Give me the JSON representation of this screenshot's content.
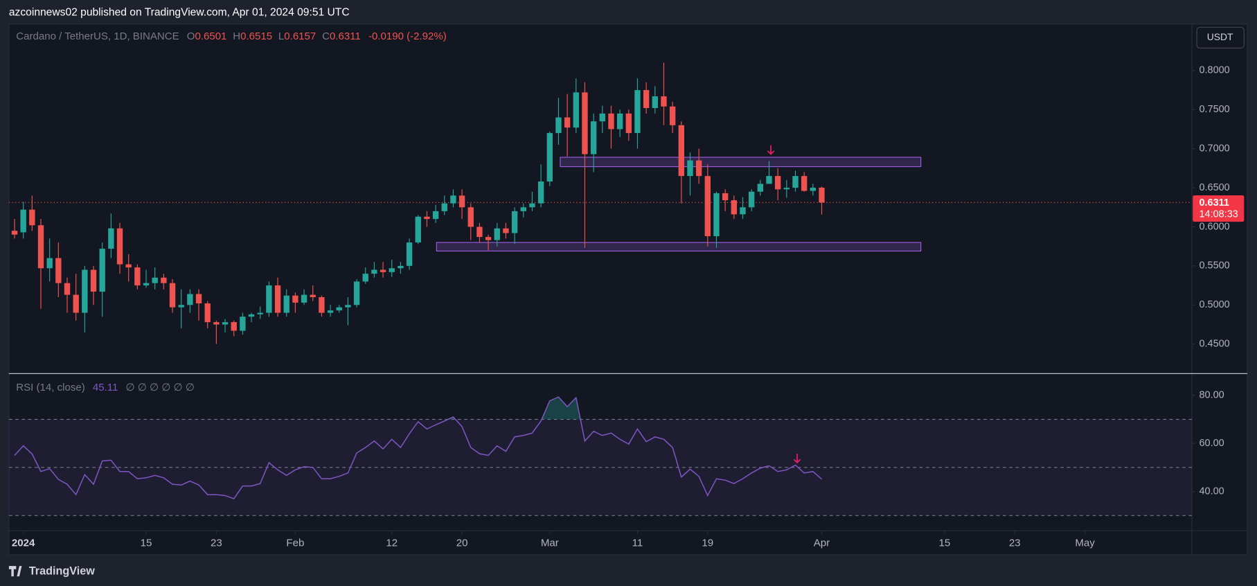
{
  "header": {
    "text": "azcoinnews02 published on TradingView.com, Apr 01, 2024 09:51 UTC"
  },
  "brand": "TradingView",
  "currency": "USDT",
  "chart_data": [
    {
      "type": "candlestick",
      "symbol": "Cardano / TetherUS, 1D, BINANCE",
      "ohlc_labels": [
        "O",
        "H",
        "L",
        "C"
      ],
      "change": "-0.0190 (-2.92%)",
      "countdown": "14:08:33",
      "up_color": "#26a69a",
      "down_color": "#ef5350",
      "x": [
        -1,
        0,
        1,
        2,
        3,
        4,
        5,
        6,
        7,
        8,
        9,
        10,
        11,
        12,
        13,
        14,
        15,
        16,
        17,
        18,
        19,
        20,
        21,
        22,
        23,
        24,
        25,
        26,
        27,
        28,
        29,
        30,
        31,
        32,
        33,
        34,
        35,
        36,
        37,
        38,
        39,
        40,
        41,
        42,
        43,
        44,
        45,
        46,
        47,
        48,
        49,
        50,
        51,
        52,
        53,
        54,
        55,
        56,
        57,
        58,
        59,
        60,
        61,
        62,
        63,
        64,
        65,
        66,
        67,
        68,
        69,
        70,
        71,
        72,
        73,
        74,
        75,
        76,
        77,
        78,
        79,
        80,
        81,
        82,
        83,
        84,
        85,
        86,
        87,
        88,
        89,
        90,
        91
      ],
      "open": [
        0.595,
        0.593,
        0.622,
        0.602,
        0.547,
        0.56,
        0.528,
        0.513,
        0.49,
        0.545,
        0.517,
        0.572,
        0.598,
        0.552,
        0.548,
        0.525,
        0.528,
        0.535,
        0.528,
        0.497,
        0.5,
        0.514,
        0.502,
        0.478,
        0.475,
        0.478,
        0.467,
        0.485,
        0.488,
        0.49,
        0.525,
        0.49,
        0.512,
        0.503,
        0.513,
        0.51,
        0.49,
        0.493,
        0.497,
        0.5,
        0.53,
        0.54,
        0.545,
        0.542,
        0.547,
        0.55,
        0.58,
        0.613,
        0.61,
        0.62,
        0.63,
        0.64,
        0.625,
        0.6,
        0.587,
        0.583,
        0.598,
        0.592,
        0.62,
        0.625,
        0.63,
        0.658,
        0.72,
        0.74,
        0.727,
        0.772,
        0.693,
        0.735,
        0.745,
        0.725,
        0.745,
        0.72,
        0.775,
        0.752,
        0.767,
        0.754,
        0.73,
        0.665,
        0.685,
        0.665,
        0.588,
        0.643,
        0.634,
        0.616,
        0.625,
        0.645,
        0.655,
        0.665,
        0.648,
        0.65,
        0.665,
        0.646,
        0.6501
      ],
      "high": [
        0.61,
        0.632,
        0.64,
        0.61,
        0.585,
        0.58,
        0.535,
        0.54,
        0.55,
        0.55,
        0.58,
        0.617,
        0.605,
        0.565,
        0.552,
        0.545,
        0.548,
        0.54,
        0.533,
        0.52,
        0.52,
        0.52,
        0.505,
        0.48,
        0.482,
        0.48,
        0.49,
        0.49,
        0.498,
        0.53,
        0.535,
        0.52,
        0.516,
        0.52,
        0.525,
        0.512,
        0.5,
        0.5,
        0.51,
        0.533,
        0.548,
        0.555,
        0.555,
        0.558,
        0.555,
        0.585,
        0.615,
        0.62,
        0.628,
        0.64,
        0.648,
        0.648,
        0.63,
        0.605,
        0.59,
        0.605,
        0.605,
        0.625,
        0.63,
        0.645,
        0.68,
        0.722,
        0.765,
        0.77,
        0.79,
        0.785,
        0.745,
        0.755,
        0.755,
        0.75,
        0.75,
        0.79,
        0.785,
        0.78,
        0.81,
        0.76,
        0.735,
        0.695,
        0.7,
        0.68,
        0.645,
        0.648,
        0.64,
        0.638,
        0.648,
        0.66,
        0.684,
        0.675,
        0.66,
        0.672,
        0.67,
        0.655,
        0.6515
      ],
      "low": [
        0.585,
        0.585,
        0.595,
        0.495,
        0.53,
        0.51,
        0.49,
        0.48,
        0.465,
        0.5,
        0.485,
        0.56,
        0.54,
        0.53,
        0.52,
        0.522,
        0.52,
        0.52,
        0.49,
        0.47,
        0.49,
        0.48,
        0.47,
        0.45,
        0.465,
        0.46,
        0.462,
        0.478,
        0.482,
        0.485,
        0.485,
        0.485,
        0.49,
        0.5,
        0.505,
        0.485,
        0.485,
        0.49,
        0.474,
        0.497,
        0.527,
        0.535,
        0.535,
        0.536,
        0.54,
        0.545,
        0.578,
        0.6,
        0.605,
        0.615,
        0.625,
        0.61,
        0.583,
        0.58,
        0.57,
        0.575,
        0.585,
        0.578,
        0.612,
        0.62,
        0.625,
        0.652,
        0.705,
        0.69,
        0.72,
        0.573,
        0.67,
        0.72,
        0.7,
        0.715,
        0.71,
        0.7,
        0.745,
        0.745,
        0.73,
        0.72,
        0.63,
        0.64,
        0.655,
        0.575,
        0.573,
        0.62,
        0.61,
        0.61,
        0.62,
        0.64,
        0.655,
        0.634,
        0.637,
        0.645,
        0.645,
        0.64,
        0.6157
      ],
      "close": [
        0.59,
        0.622,
        0.602,
        0.547,
        0.56,
        0.528,
        0.513,
        0.49,
        0.545,
        0.517,
        0.572,
        0.598,
        0.552,
        0.548,
        0.525,
        0.528,
        0.535,
        0.528,
        0.497,
        0.5,
        0.514,
        0.502,
        0.478,
        0.475,
        0.478,
        0.467,
        0.485,
        0.488,
        0.49,
        0.525,
        0.49,
        0.512,
        0.503,
        0.513,
        0.51,
        0.49,
        0.493,
        0.497,
        0.5,
        0.53,
        0.54,
        0.545,
        0.542,
        0.547,
        0.55,
        0.58,
        0.613,
        0.61,
        0.62,
        0.63,
        0.64,
        0.625,
        0.6,
        0.587,
        0.583,
        0.598,
        0.592,
        0.62,
        0.625,
        0.63,
        0.658,
        0.72,
        0.74,
        0.727,
        0.772,
        0.693,
        0.735,
        0.745,
        0.725,
        0.745,
        0.72,
        0.775,
        0.752,
        0.767,
        0.754,
        0.73,
        0.665,
        0.685,
        0.665,
        0.588,
        0.643,
        0.634,
        0.616,
        0.625,
        0.645,
        0.655,
        0.665,
        0.648,
        0.65,
        0.665,
        0.646,
        0.6501,
        0.6311
      ],
      "xlim": [
        -1.64,
        133.2
      ],
      "ylim": [
        0.4122,
        0.8595
      ],
      "yticks": [
        {
          "value": 0.8,
          "label": "0.8000"
        },
        {
          "value": 0.75,
          "label": "0.7500"
        },
        {
          "value": 0.7,
          "label": "0.7000"
        },
        {
          "value": 0.65,
          "label": "0.6500"
        },
        {
          "value": 0.6,
          "label": "0.6000"
        },
        {
          "value": 0.55,
          "label": "0.5500"
        },
        {
          "value": 0.5,
          "label": "0.5000"
        },
        {
          "value": 0.45,
          "label": "0.4500"
        }
      ],
      "zones": [
        {
          "x": [
            61.2,
            102.3
          ],
          "y": [
            0.677,
            0.689
          ]
        },
        {
          "x": [
            47.1,
            102.3
          ],
          "y": [
            0.569,
            0.58
          ]
        }
      ],
      "zone_color": "#9c5ce0",
      "arrows": [
        {
          "x": 85.2,
          "y": 0.693
        }
      ],
      "arrow_color": "#e91e63"
    },
    {
      "type": "line",
      "title": "RSI (14, close)",
      "extras": "∅ ∅ ∅ ∅ ∅ ∅",
      "color": "#7e57c2",
      "x": [
        -1,
        0,
        1,
        2,
        3,
        4,
        5,
        6,
        7,
        8,
        9,
        10,
        11,
        12,
        13,
        14,
        15,
        16,
        17,
        18,
        19,
        20,
        21,
        22,
        23,
        24,
        25,
        26,
        27,
        28,
        29,
        30,
        31,
        32,
        33,
        34,
        35,
        36,
        37,
        38,
        39,
        40,
        41,
        42,
        43,
        44,
        45,
        46,
        47,
        48,
        49,
        50,
        51,
        52,
        53,
        54,
        55,
        56,
        57,
        58,
        59,
        60,
        61,
        62,
        63,
        64,
        65,
        66,
        67,
        68,
        69,
        70,
        71,
        72,
        73,
        74,
        75,
        76,
        77,
        78,
        79,
        80,
        81,
        82,
        83,
        84,
        85,
        86,
        87,
        88,
        89,
        90,
        91
      ],
      "values": [
        55,
        59,
        55.6,
        48.3,
        49.5,
        45,
        43,
        38.7,
        47,
        43,
        52.7,
        53,
        48.3,
        48.3,
        45.3,
        45.7,
        46.7,
        45.7,
        43,
        42.7,
        44.3,
        42.7,
        38.7,
        38.7,
        38.3,
        37,
        42.3,
        42.3,
        43.3,
        52,
        49,
        46.7,
        49,
        50.3,
        50,
        45.3,
        45.3,
        46.3,
        47.7,
        56,
        58.3,
        61,
        57.7,
        61.7,
        58.3,
        64,
        69,
        66,
        67.7,
        69.3,
        71,
        67,
        58.3,
        55.7,
        55,
        59,
        56.7,
        62.7,
        63.3,
        64.3,
        69.3,
        77.7,
        79.3,
        75.3,
        79,
        61,
        65,
        63.3,
        64.3,
        61.7,
        59.7,
        66,
        60.7,
        62.7,
        61.7,
        58.3,
        46,
        49.3,
        46.3,
        38.3,
        45.3,
        44.7,
        43.3,
        45.3,
        47.7,
        49.7,
        50.7,
        48.3,
        49,
        51,
        47.7,
        48.3,
        45.11
      ],
      "xlim": [
        -1.64,
        133.2
      ],
      "ylim": [
        23.7,
        88.7
      ],
      "yticks": [
        {
          "value": 80,
          "label": "80.00"
        },
        {
          "value": 60,
          "label": "60.00"
        },
        {
          "value": 40,
          "label": "40.00"
        }
      ],
      "bands": [
        70,
        50,
        30
      ],
      "arrows": [
        {
          "x": 88.2,
          "y": 52
        }
      ],
      "arrow_color": "#e91e63",
      "xticks": [
        {
          "value": 0,
          "label": "2024"
        },
        {
          "value": 14,
          "label": "15"
        },
        {
          "value": 22,
          "label": "23"
        },
        {
          "value": 31,
          "label": "Feb"
        },
        {
          "value": 42,
          "label": "12"
        },
        {
          "value": 50,
          "label": "20"
        },
        {
          "value": 60,
          "label": "Mar"
        },
        {
          "value": 70,
          "label": "11"
        },
        {
          "value": 78,
          "label": "19"
        },
        {
          "value": 91,
          "label": "Apr"
        },
        {
          "value": 105,
          "label": "15"
        },
        {
          "value": 113,
          "label": "23"
        },
        {
          "value": 121,
          "label": "May"
        }
      ]
    }
  ]
}
